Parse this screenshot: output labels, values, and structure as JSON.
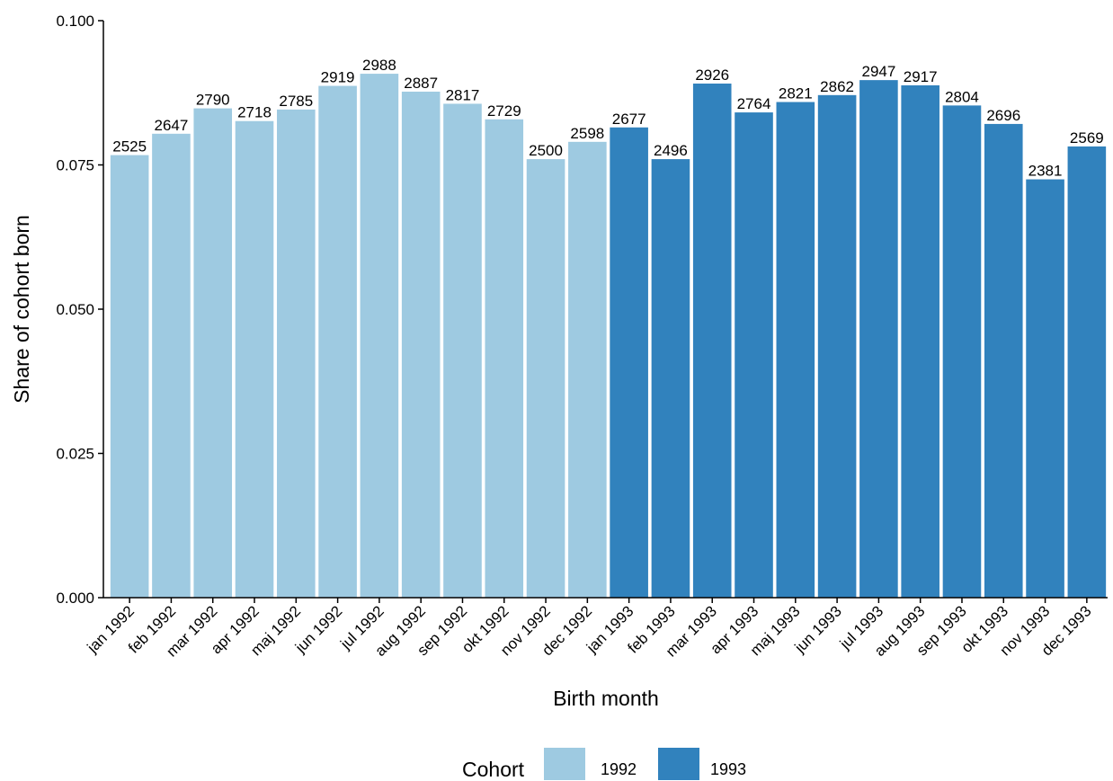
{
  "chart_data": {
    "type": "bar",
    "xlabel": "Birth month",
    "ylabel": "Share of cohort born",
    "ylim": [
      0,
      0.1
    ],
    "yticks": [
      "0.000",
      "0.025",
      "0.050",
      "0.075",
      "0.100"
    ],
    "yticks_values": [
      0,
      0.025,
      0.05,
      0.075,
      0.1
    ],
    "grid": false,
    "legend": {
      "title": "Cohort",
      "position": "bottom",
      "entries": [
        {
          "name": "1992",
          "color": "#9ecae1"
        },
        {
          "name": "1993",
          "color": "#3182bd"
        }
      ]
    },
    "categories": [
      "jan 1992",
      "feb 1992",
      "mar 1992",
      "apr 1992",
      "maj 1992",
      "jun 1992",
      "jul 1992",
      "aug 1992",
      "sep 1992",
      "okt 1992",
      "nov 1992",
      "dec 1992",
      "jan 1993",
      "feb 1993",
      "mar 1993",
      "apr 1993",
      "maj 1993",
      "jun 1993",
      "jul 1993",
      "aug 1993",
      "sep 1993",
      "okt 1993",
      "nov 1993",
      "dec 1993"
    ],
    "values": [
      0.0767,
      0.0804,
      0.0848,
      0.0826,
      0.0846,
      0.0887,
      0.0908,
      0.0877,
      0.0856,
      0.0829,
      0.076,
      0.079,
      0.0815,
      0.076,
      0.0891,
      0.0841,
      0.0859,
      0.0871,
      0.0897,
      0.0888,
      0.0853,
      0.0821,
      0.0725,
      0.0782
    ],
    "counts": [
      "2525",
      "2647",
      "2790",
      "2718",
      "2785",
      "2919",
      "2988",
      "2887",
      "2817",
      "2729",
      "2500",
      "2598",
      "2677",
      "2496",
      "2926",
      "2764",
      "2821",
      "2862",
      "2947",
      "2917",
      "2804",
      "2696",
      "2381",
      "2569"
    ],
    "cohort": [
      "1992",
      "1992",
      "1992",
      "1992",
      "1992",
      "1992",
      "1992",
      "1992",
      "1992",
      "1992",
      "1992",
      "1992",
      "1993",
      "1993",
      "1993",
      "1993",
      "1993",
      "1993",
      "1993",
      "1993",
      "1993",
      "1993",
      "1993",
      "1993"
    ]
  }
}
